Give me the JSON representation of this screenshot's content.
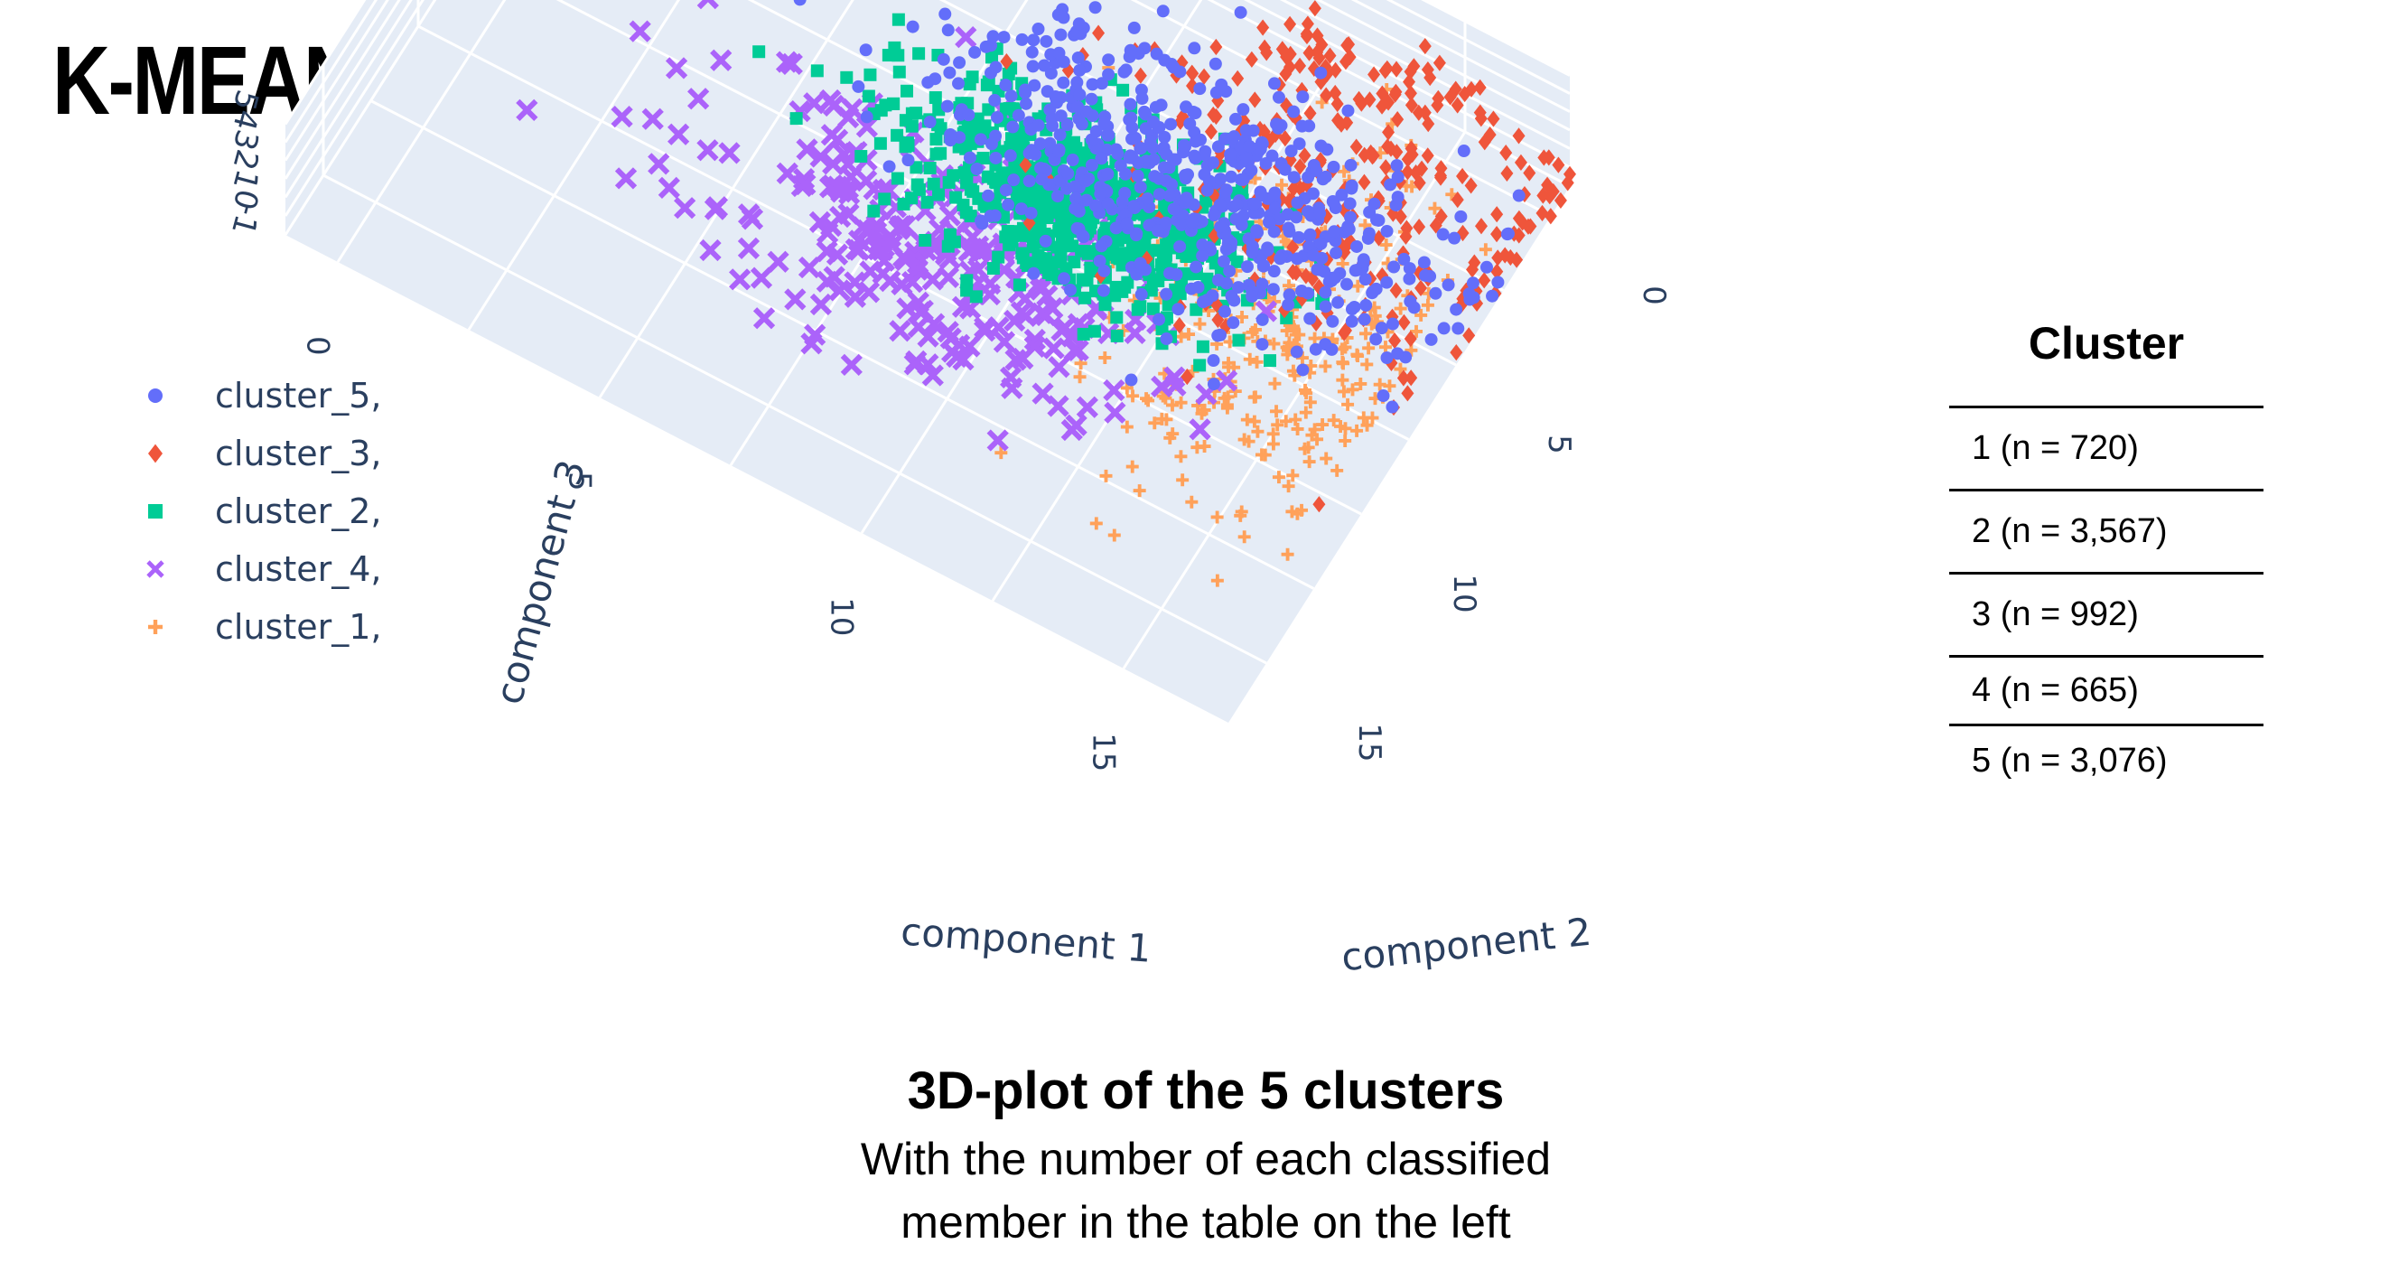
{
  "page": {
    "title": "K-MEAN CLUSTERING"
  },
  "chart_data": {
    "type": "scatter3d",
    "axes": {
      "x": {
        "label": "component 1",
        "ticks": [
          "0",
          "5",
          "10",
          "15"
        ],
        "range": [
          -1,
          17
        ]
      },
      "y": {
        "label": "component 2",
        "ticks": [
          "15",
          "10",
          "5",
          "0"
        ],
        "range": [
          -1,
          17
        ]
      },
      "z": {
        "label": "component 3",
        "ticks": [
          "-1",
          "0",
          "1",
          "2",
          "3",
          "4",
          "5"
        ],
        "range": [
          -1,
          5
        ]
      }
    },
    "grid": true,
    "legend_position": "left",
    "series": [
      {
        "name": "cluster_5,",
        "symbol": "circle",
        "color": "#636efa",
        "count": 3076,
        "center": [
          12,
          5,
          1.3
        ],
        "spread": [
          2.4,
          1.6,
          0.7
        ]
      },
      {
        "name": "cluster_3,",
        "symbol": "diamond",
        "color": "#ef553b",
        "count": 992,
        "center": [
          14,
          2,
          0.4
        ],
        "spread": [
          2,
          2.6,
          0.8
        ]
      },
      {
        "name": "cluster_2,",
        "symbol": "square",
        "color": "#00cc96",
        "count": 3567,
        "center": [
          10.5,
          7,
          1.4
        ],
        "spread": [
          1.6,
          1.2,
          0.6
        ]
      },
      {
        "name": "cluster_4,",
        "symbol": "x",
        "color": "#ab63fa",
        "count": 665,
        "center": [
          8.5,
          10,
          0.6
        ],
        "spread": [
          2.4,
          1.6,
          0.8
        ]
      },
      {
        "name": "cluster_1,",
        "symbol": "cross",
        "color": "#ffa15a",
        "count": 720,
        "center": [
          15,
          9,
          3.8
        ],
        "spread": [
          1.4,
          2.8,
          0.6
        ]
      }
    ]
  },
  "table": {
    "header": "Cluster",
    "rows": [
      "1 (n = 720)",
      "2 (n = 3,567)",
      "3 (n = 992)",
      "4 (n = 665)",
      "5 (n = 3,076)"
    ]
  },
  "caption": {
    "title": "3D-plot of the 5 clusters",
    "line1": "With the number of each classified",
    "line2": "member in the table on the left"
  }
}
